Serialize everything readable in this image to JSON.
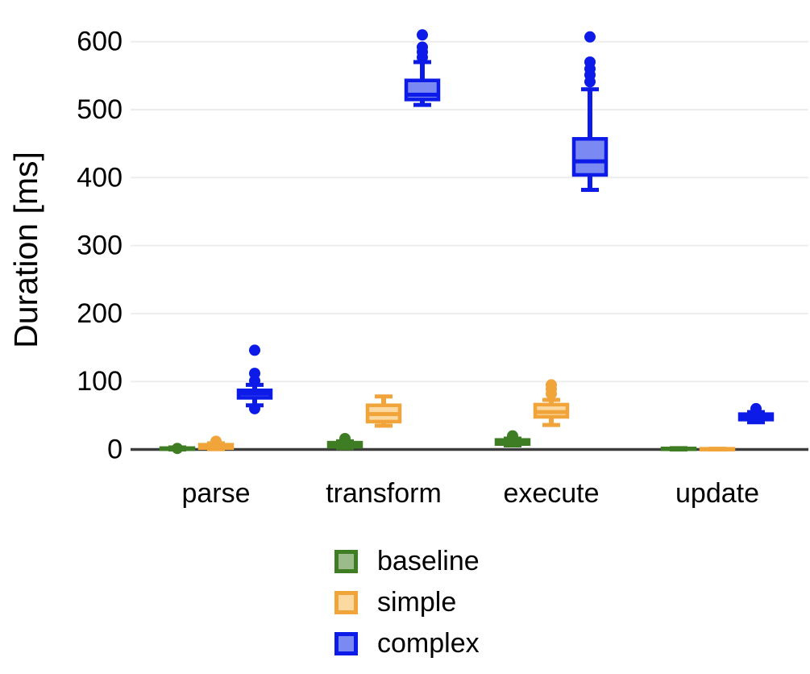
{
  "figure": {
    "background": "#ffffff",
    "axis_color": "#3c3c3c",
    "grid_color": "#ededed",
    "text_color": "#000000"
  },
  "chart_data": {
    "type": "boxplot",
    "title": "",
    "xlabel": "",
    "ylabel": "Duration [ms]",
    "ylim": [
      0,
      640
    ],
    "yticks": [
      0,
      100,
      200,
      300,
      400,
      500,
      600
    ],
    "grid": "horizontal",
    "legend_position": "bottom-center",
    "categories": [
      "parse",
      "transform",
      "execute",
      "update"
    ],
    "series": [
      {
        "name": "baseline",
        "color": "#3e7d23",
        "fill": "#9bbc8a",
        "boxes": [
          {
            "category": "parse",
            "min": 0,
            "q1": 0.5,
            "median": 1,
            "q3": 2,
            "max": 3,
            "outliers": [
              1.5
            ]
          },
          {
            "category": "transform",
            "min": 2,
            "q1": 4,
            "median": 6.5,
            "q3": 10,
            "max": 12,
            "outliers": [
              16
            ]
          },
          {
            "category": "execute",
            "min": 6,
            "q1": 8,
            "median": 11,
            "q3": 14,
            "max": 16,
            "outliers": [
              20
            ]
          },
          {
            "category": "update",
            "min": 0,
            "q1": 0.5,
            "median": 1,
            "q3": 1.5,
            "max": 2,
            "outliers": []
          }
        ]
      },
      {
        "name": "simple",
        "color": "#f0a43a",
        "fill": "#fbd9a0",
        "boxes": [
          {
            "category": "parse",
            "min": 0.5,
            "q1": 2,
            "median": 4.5,
            "q3": 7,
            "max": 9,
            "outliers": [
              12
            ]
          },
          {
            "category": "transform",
            "min": 35,
            "q1": 41,
            "median": 52,
            "q3": 65,
            "max": 78,
            "outliers": []
          },
          {
            "category": "execute",
            "min": 36,
            "q1": 48,
            "median": 55,
            "q3": 66,
            "max": 73,
            "outliers": [
              82,
              89,
              95
            ]
          },
          {
            "category": "update",
            "min": 0,
            "q1": 0,
            "median": 0.5,
            "q3": 1,
            "max": 1,
            "outliers": []
          }
        ]
      },
      {
        "name": "complex",
        "color": "#0c1be8",
        "fill": "#7b8af2",
        "boxes": [
          {
            "category": "parse",
            "min": 65,
            "q1": 76,
            "median": 82,
            "q3": 87,
            "max": 95,
            "outliers": [
              60,
              101,
              112,
              146
            ]
          },
          {
            "category": "transform",
            "min": 507,
            "q1": 515,
            "median": 522,
            "q3": 543,
            "max": 570,
            "outliers": [
              577,
              585,
              592,
              610
            ]
          },
          {
            "category": "execute",
            "min": 382,
            "q1": 404,
            "median": 424,
            "q3": 457,
            "max": 530,
            "outliers": [
              541,
              551,
              560,
              570,
              607
            ]
          },
          {
            "category": "update",
            "min": 40,
            "q1": 44,
            "median": 47,
            "q3": 52,
            "max": 55,
            "outliers": [
              60
            ]
          }
        ]
      }
    ]
  }
}
